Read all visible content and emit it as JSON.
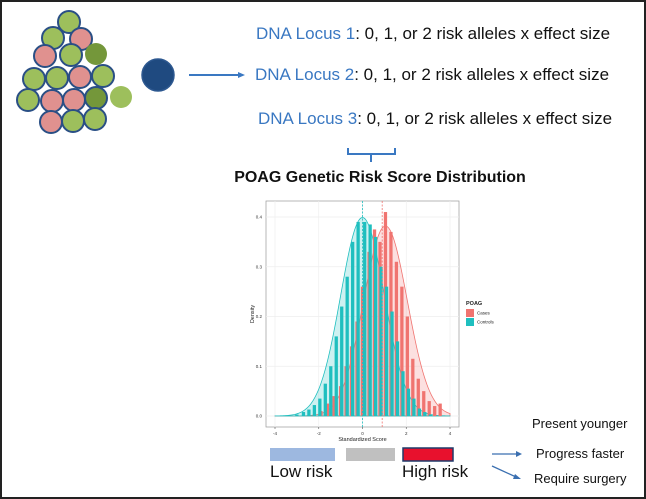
{
  "loci": [
    {
      "label": "DNA Locus 1",
      "text": ": 0, 1, or 2 risk alleles x effect size"
    },
    {
      "label": "DNA Locus 2",
      "text": ": 0, 1, or 2 risk alleles x effect size"
    },
    {
      "label": "DNA Locus 3",
      "text": ": 0, 1, or 2 risk alleles x effect size"
    }
  ],
  "title": "POAG Genetic Risk Score Distribution",
  "colors": {
    "pink": "#e0918f",
    "green": "#9dbf5c",
    "dark_green": "#74973a",
    "navy": "#1f4a80",
    "accent_blue": "#3a78c2",
    "cases": "#f07470",
    "controls": "#1fbfbf",
    "low_risk": "#9db8e0",
    "mid_risk": "#c0c0c0",
    "high_risk": "#e8112d"
  },
  "chart_data": {
    "type": "bar",
    "xlabel": "Standardized Score",
    "ylabel": "Density",
    "xlim": [
      -4,
      4
    ],
    "ylim": [
      0,
      0.42
    ],
    "xticks": [
      "-4",
      "-2",
      "0",
      "2",
      "4"
    ],
    "yticks": [
      "0.0",
      "0.1",
      "0.2",
      "0.3",
      "0.4"
    ],
    "grid": true,
    "legend": {
      "title": "POAG",
      "placement": "right"
    },
    "series": [
      {
        "name": "Cases",
        "color": "#f07470",
        "mean_line": 0.9,
        "x": [
          -2.2,
          -1.9,
          -1.6,
          -1.3,
          -1.0,
          -0.75,
          -0.5,
          -0.25,
          0.0,
          0.3,
          0.55,
          0.8,
          1.05,
          1.3,
          1.55,
          1.8,
          2.05,
          2.3,
          2.55,
          2.8,
          3.05,
          3.3,
          3.55
        ],
        "values": [
          0.003,
          0.01,
          0.025,
          0.04,
          0.06,
          0.1,
          0.14,
          0.19,
          0.26,
          0.33,
          0.375,
          0.35,
          0.41,
          0.37,
          0.31,
          0.26,
          0.2,
          0.115,
          0.075,
          0.05,
          0.03,
          0.02,
          0.025
        ]
      },
      {
        "name": "Controls",
        "color": "#1fbfbf",
        "mean_line": 0.0,
        "x": [
          -3.0,
          -2.7,
          -2.45,
          -2.2,
          -1.95,
          -1.7,
          -1.45,
          -1.2,
          -0.95,
          -0.7,
          -0.45,
          -0.2,
          0.1,
          0.35,
          0.6,
          0.85,
          1.1,
          1.35,
          1.6,
          1.85,
          2.1,
          2.35,
          2.6,
          2.85,
          3.1
        ],
        "values": [
          0.003,
          0.008,
          0.013,
          0.022,
          0.035,
          0.065,
          0.1,
          0.16,
          0.22,
          0.28,
          0.35,
          0.39,
          0.39,
          0.385,
          0.36,
          0.3,
          0.26,
          0.21,
          0.15,
          0.09,
          0.055,
          0.035,
          0.015,
          0.008,
          0.003
        ]
      }
    ]
  },
  "risk_scale": {
    "low": "Low risk",
    "high": "High risk"
  },
  "outcomes": [
    "Present younger",
    "Progress faster",
    "Require surgery"
  ]
}
